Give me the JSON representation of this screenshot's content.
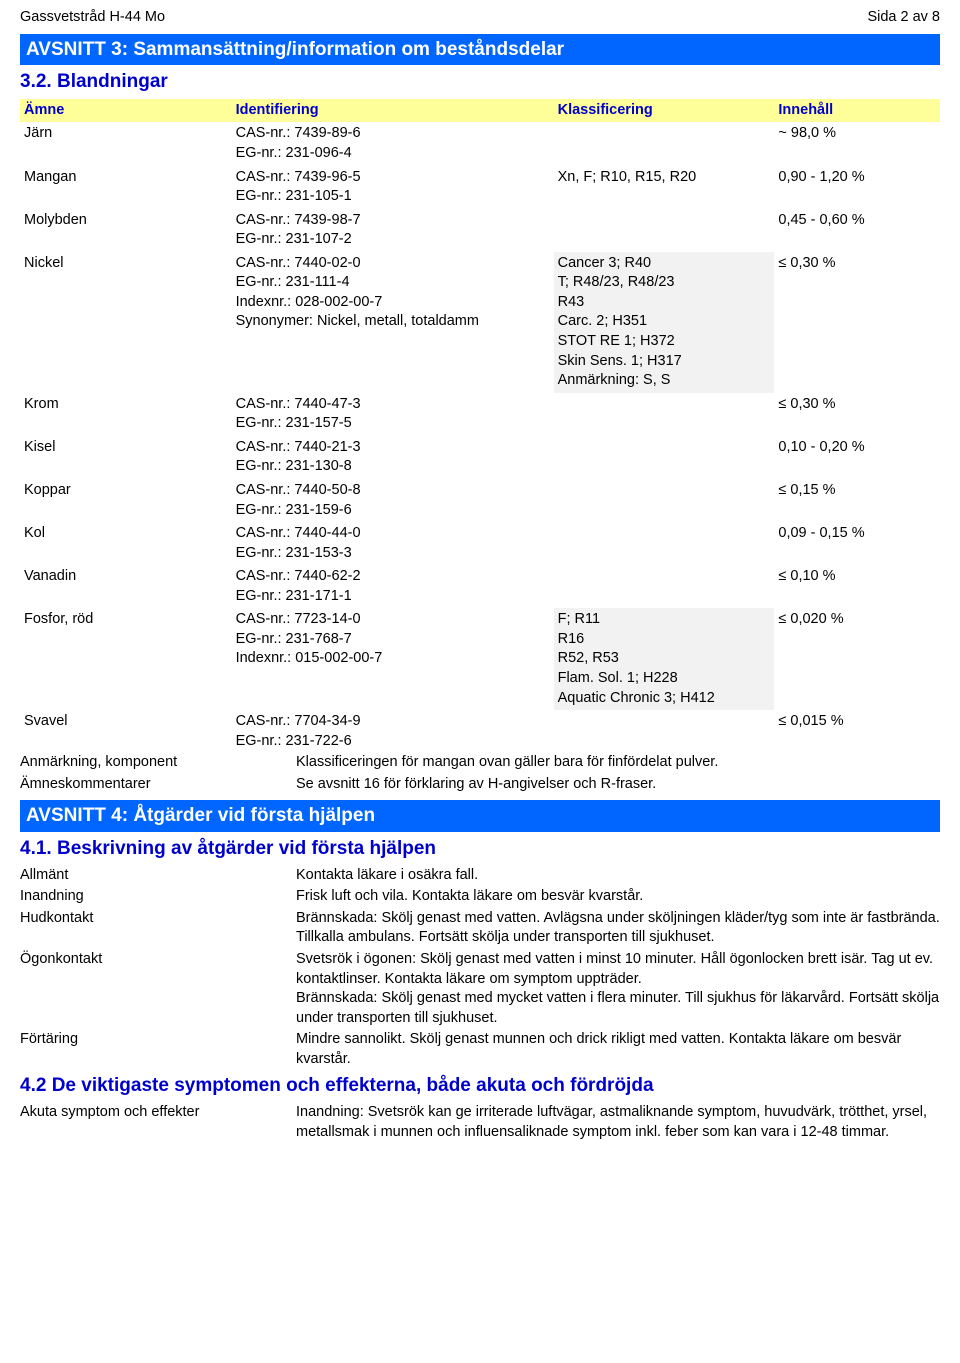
{
  "header": {
    "left": "Gassvetstråd H-44 Mo",
    "right": "Sida 2 av 8"
  },
  "section3": {
    "title": "AVSNITT 3: Sammansättning/information om beståndsdelar",
    "subtitle": "3.2. Blandningar",
    "columns": [
      "Ämne",
      "Identifiering",
      "Klassificering",
      "Innehåll"
    ],
    "rows": [
      {
        "name": "Järn",
        "ident": "CAS-nr.: 7439-89-6\nEG-nr.: 231-096-4",
        "klass": "",
        "innehall": "~ 98,0 %"
      },
      {
        "name": "Mangan",
        "ident": "CAS-nr.: 7439-96-5\nEG-nr.: 231-105-1",
        "klass": "Xn, F; R10, R15, R20",
        "innehall": "0,90 - 1,20 %"
      },
      {
        "name": "Molybden",
        "ident": "CAS-nr.: 7439-98-7\nEG-nr.: 231-107-2",
        "klass": "",
        "innehall": "0,45 - 0,60 %"
      },
      {
        "name": "Nickel",
        "ident": "CAS-nr.: 7440-02-0\nEG-nr.: 231-111-4\nIndexnr.: 028-002-00-7\nSynonymer: Nickel, metall, totaldamm",
        "klass": "Cancer 3; R40\nT; R48/23, R48/23\nR43\nCarc. 2; H351\nSTOT RE 1; H372\nSkin Sens. 1; H317\nAnmärkning: S, S",
        "innehall": "≤ 0,30 %",
        "shaded": true
      },
      {
        "name": "Krom",
        "ident": "CAS-nr.: 7440-47-3\nEG-nr.: 231-157-5",
        "klass": "",
        "innehall": "≤ 0,30 %"
      },
      {
        "name": "Kisel",
        "ident": "CAS-nr.: 7440-21-3\nEG-nr.: 231-130-8",
        "klass": "",
        "innehall": "0,10 - 0,20 %"
      },
      {
        "name": "Koppar",
        "ident": "CAS-nr.: 7440-50-8\nEG-nr.: 231-159-6",
        "klass": "",
        "innehall": "≤ 0,15 %"
      },
      {
        "name": "Kol",
        "ident": "CAS-nr.: 7440-44-0\nEG-nr.: 231-153-3",
        "klass": "",
        "innehall": "0,09 - 0,15 %"
      },
      {
        "name": "Vanadin",
        "ident": "CAS-nr.: 7440-62-2\nEG-nr.: 231-171-1",
        "klass": "",
        "innehall": "≤ 0,10 %"
      },
      {
        "name": "Fosfor, röd",
        "ident": "CAS-nr.: 7723-14-0\nEG-nr.: 231-768-7\nIndexnr.: 015-002-00-7",
        "klass": "F; R11\nR16\nR52, R53\nFlam. Sol. 1; H228\nAquatic Chronic 3; H412",
        "innehall": "≤ 0,020 %",
        "shaded": true
      },
      {
        "name": "Svavel",
        "ident": "CAS-nr.: 7704-34-9\nEG-nr.: 231-722-6",
        "klass": "",
        "innehall": "≤ 0,015 %"
      }
    ],
    "notes": [
      {
        "label": "Anmärkning, komponent",
        "value": "Klassificeringen för mangan ovan gäller bara för finfördelat pulver."
      },
      {
        "label": "Ämneskommentarer",
        "value": "Se avsnitt 16 för förklaring av H-angivelser och R-fraser."
      }
    ]
  },
  "section4": {
    "title": "AVSNITT 4: Åtgärder vid första hjälpen",
    "sub1": {
      "title": "4.1. Beskrivning av åtgärder vid första hjälpen",
      "rows": [
        {
          "label": "Allmänt",
          "value": "Kontakta läkare i osäkra fall."
        },
        {
          "label": "Inandning",
          "value": "Frisk luft och vila. Kontakta läkare om besvär kvarstår."
        },
        {
          "label": "Hudkontakt",
          "value": "Brännskada: Skölj genast med vatten. Avlägsna under sköljningen kläder/tyg som inte är fastbrända. Tillkalla ambulans. Fortsätt skölja under transporten till sjukhuset."
        },
        {
          "label": "Ögonkontakt",
          "value": "Svetsrök i ögonen: Skölj genast med vatten i minst 10 minuter. Håll ögonlocken brett isär. Tag ut ev. kontaktlinser. Kontakta läkare om symptom uppträder.\nBrännskada: Skölj genast med mycket vatten i flera minuter. Till sjukhus för läkarvård. Fortsätt skölja under transporten till sjukhuset."
        },
        {
          "label": "Förtäring",
          "value": "Mindre sannolikt. Skölj genast munnen och drick rikligt med vatten. Kontakta läkare om besvär kvarstår."
        }
      ]
    },
    "sub2": {
      "title": "4.2 De viktigaste symptomen och effekterna, både akuta och fördröjda",
      "rows": [
        {
          "label": "Akuta symptom och effekter",
          "value": "Inandning: Svetsrök kan ge irriterade luftvägar, astmaliknande symptom, huvudvärk, trötthet, yrsel, metallsmak i munnen och influensaliknade symptom inkl. feber som kan vara i 12-48 timmar."
        }
      ]
    }
  },
  "styling": {
    "header_bg": "#0066ff",
    "header_fg": "#ffffff",
    "subsection_fg": "#0000cc",
    "col_header_bg": "#ffff99",
    "shaded_bg": "#f2f2f2",
    "body_fontsize": 14.5,
    "header_fontsize": 19
  }
}
